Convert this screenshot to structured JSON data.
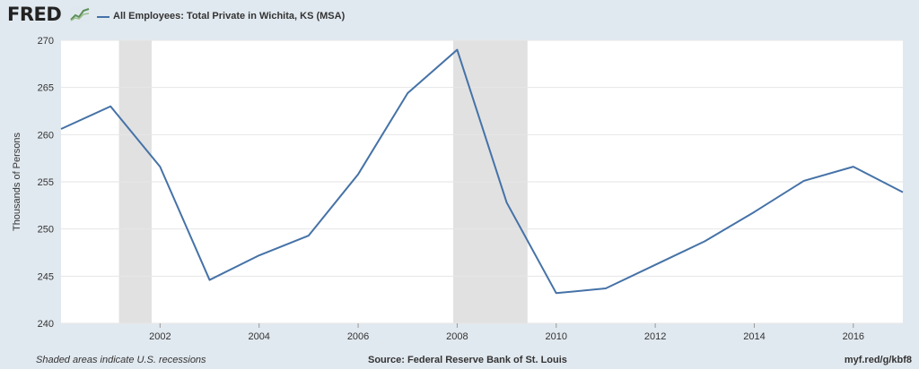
{
  "header": {
    "logo_text": "FRED",
    "legend_label": "All Employees: Total Private in Wichita, KS (MSA)"
  },
  "footer": {
    "note": "Shaded areas indicate U.S. recessions",
    "source": "Source: Federal Reserve Bank of St. Louis",
    "link": "myf.red/g/kbf8"
  },
  "colors": {
    "line": "#4572a7",
    "recession": "#e1e1e1",
    "plot_bg": "#ffffff",
    "page_bg": "#e1e9f0"
  },
  "chart_data": {
    "type": "line",
    "title": "",
    "ylabel": "Thousands of Persons",
    "xlabel": "",
    "ylim": [
      240,
      270
    ],
    "xlim": [
      2000,
      2017
    ],
    "y_ticks": [
      240,
      245,
      250,
      255,
      260,
      265,
      270
    ],
    "x_ticks": [
      2002,
      2004,
      2006,
      2008,
      2010,
      2012,
      2014,
      2016
    ],
    "grid": true,
    "recessions": [
      [
        2001.17,
        2001.83
      ],
      [
        2007.92,
        2009.42
      ]
    ],
    "series": [
      {
        "name": "All Employees: Total Private in Wichita, KS (MSA)",
        "x": [
          2000,
          2001,
          2002,
          2003,
          2004,
          2005,
          2006,
          2007,
          2008,
          2009,
          2010,
          2011,
          2012,
          2013,
          2014,
          2015,
          2016,
          2017
        ],
        "y": [
          260.6,
          263.0,
          256.6,
          244.6,
          247.2,
          249.3,
          255.8,
          264.4,
          269.0,
          252.8,
          243.2,
          243.7,
          246.2,
          248.7,
          251.8,
          255.1,
          256.6,
          253.9
        ]
      }
    ]
  }
}
